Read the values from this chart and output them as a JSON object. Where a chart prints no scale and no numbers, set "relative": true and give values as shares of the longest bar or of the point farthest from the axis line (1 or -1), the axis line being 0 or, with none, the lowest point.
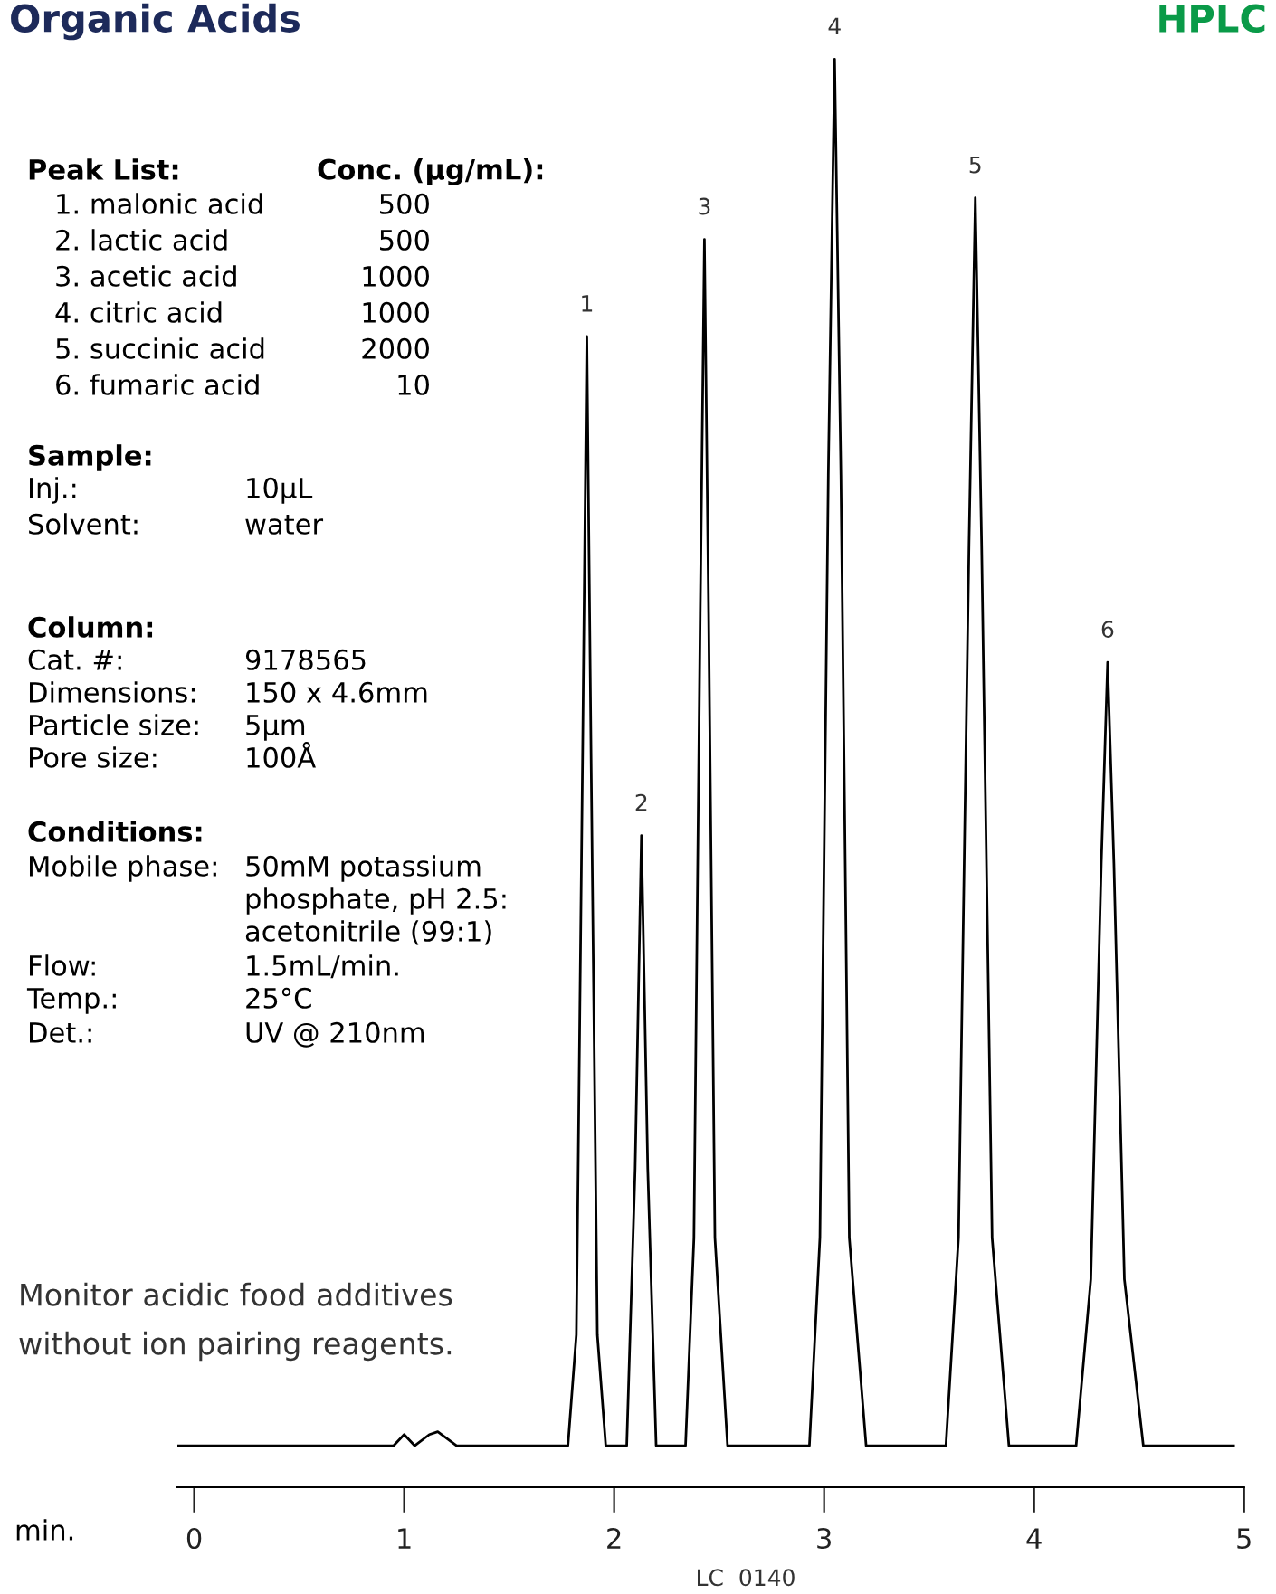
{
  "chart_data": {
    "type": "line",
    "title": "Organic Acids",
    "subtitle": "HPLC",
    "relative": true,
    "x": [
      -0.08,
      0.5,
      0.95,
      1.0,
      1.05,
      1.12,
      1.16,
      1.25,
      1.78,
      1.82,
      1.85,
      1.87,
      1.89,
      1.92,
      1.96,
      2.06,
      2.1,
      2.13,
      2.16,
      2.2,
      2.34,
      2.38,
      2.41,
      2.43,
      2.45,
      2.48,
      2.54,
      2.93,
      2.98,
      3.02,
      3.05,
      3.08,
      3.12,
      3.2,
      3.58,
      3.64,
      3.69,
      3.72,
      3.75,
      3.8,
      3.88,
      4.2,
      4.27,
      4.32,
      4.35,
      4.38,
      4.43,
      4.52,
      4.95
    ],
    "series": [
      {
        "color": "#000000",
        "values": [
          0.0,
          0.0,
          0.0,
          0.008,
          0.0,
          0.008,
          0.01,
          0.0,
          0.0,
          0.08,
          0.5,
          0.8,
          0.5,
          0.08,
          0.0,
          0.0,
          0.2,
          0.44,
          0.2,
          0.0,
          0.0,
          0.15,
          0.6,
          0.87,
          0.6,
          0.15,
          0.0,
          0.0,
          0.15,
          0.7,
          1.0,
          0.7,
          0.15,
          0.0,
          0.0,
          0.15,
          0.65,
          0.9,
          0.65,
          0.15,
          0.0,
          0.0,
          0.12,
          0.42,
          0.565,
          0.42,
          0.12,
          0.0,
          0.0
        ]
      }
    ],
    "xlim": [
      -0.08,
      5.0
    ],
    "xticks": [
      0,
      1,
      2,
      3,
      4,
      5
    ],
    "xlabel": "min.",
    "tick_labels": "x",
    "grid": false,
    "legend": false,
    "marker": "none",
    "line_style": "solid",
    "annotations": [
      {
        "text": "1",
        "x": 1.87,
        "y": 0.8
      },
      {
        "text": "2",
        "x": 2.13,
        "y": 0.44
      },
      {
        "text": "3",
        "x": 2.43,
        "y": 0.87
      },
      {
        "text": "4",
        "x": 3.05,
        "y": 1.0
      },
      {
        "text": "5",
        "x": 3.72,
        "y": 0.9
      },
      {
        "text": "6",
        "x": 4.35,
        "y": 0.565
      },
      "Peak List:\tConc. (μg/mL):",
      "1. malonic acid\t500",
      "2. lactic acid\t500",
      "3. acetic acid\t1000",
      "4. citric acid\t1000",
      "5. succinic acid\t2000",
      "6. fumaric acid\t10",
      "Sample:",
      "Inj.:\t10μL",
      "Solvent:\twater",
      "Column:",
      "Cat. #:\t9178565",
      "Dimensions:\t150 x 4.6mm",
      "Particle size:\t5μm",
      "Pore size:\t100Å",
      "Conditions:",
      "Mobile phase:\t50mM potassium",
      "\tphosphate, pH 2.5:",
      "\tacetonitrile (99:1)",
      "Flow:\t1.5mL/min.",
      "Temp.:\t25°C",
      "Det.:\tUV @ 210nm",
      "Monitor acidic food additives",
      "without ion pairing reagents.",
      "LC  0140"
    ]
  }
}
